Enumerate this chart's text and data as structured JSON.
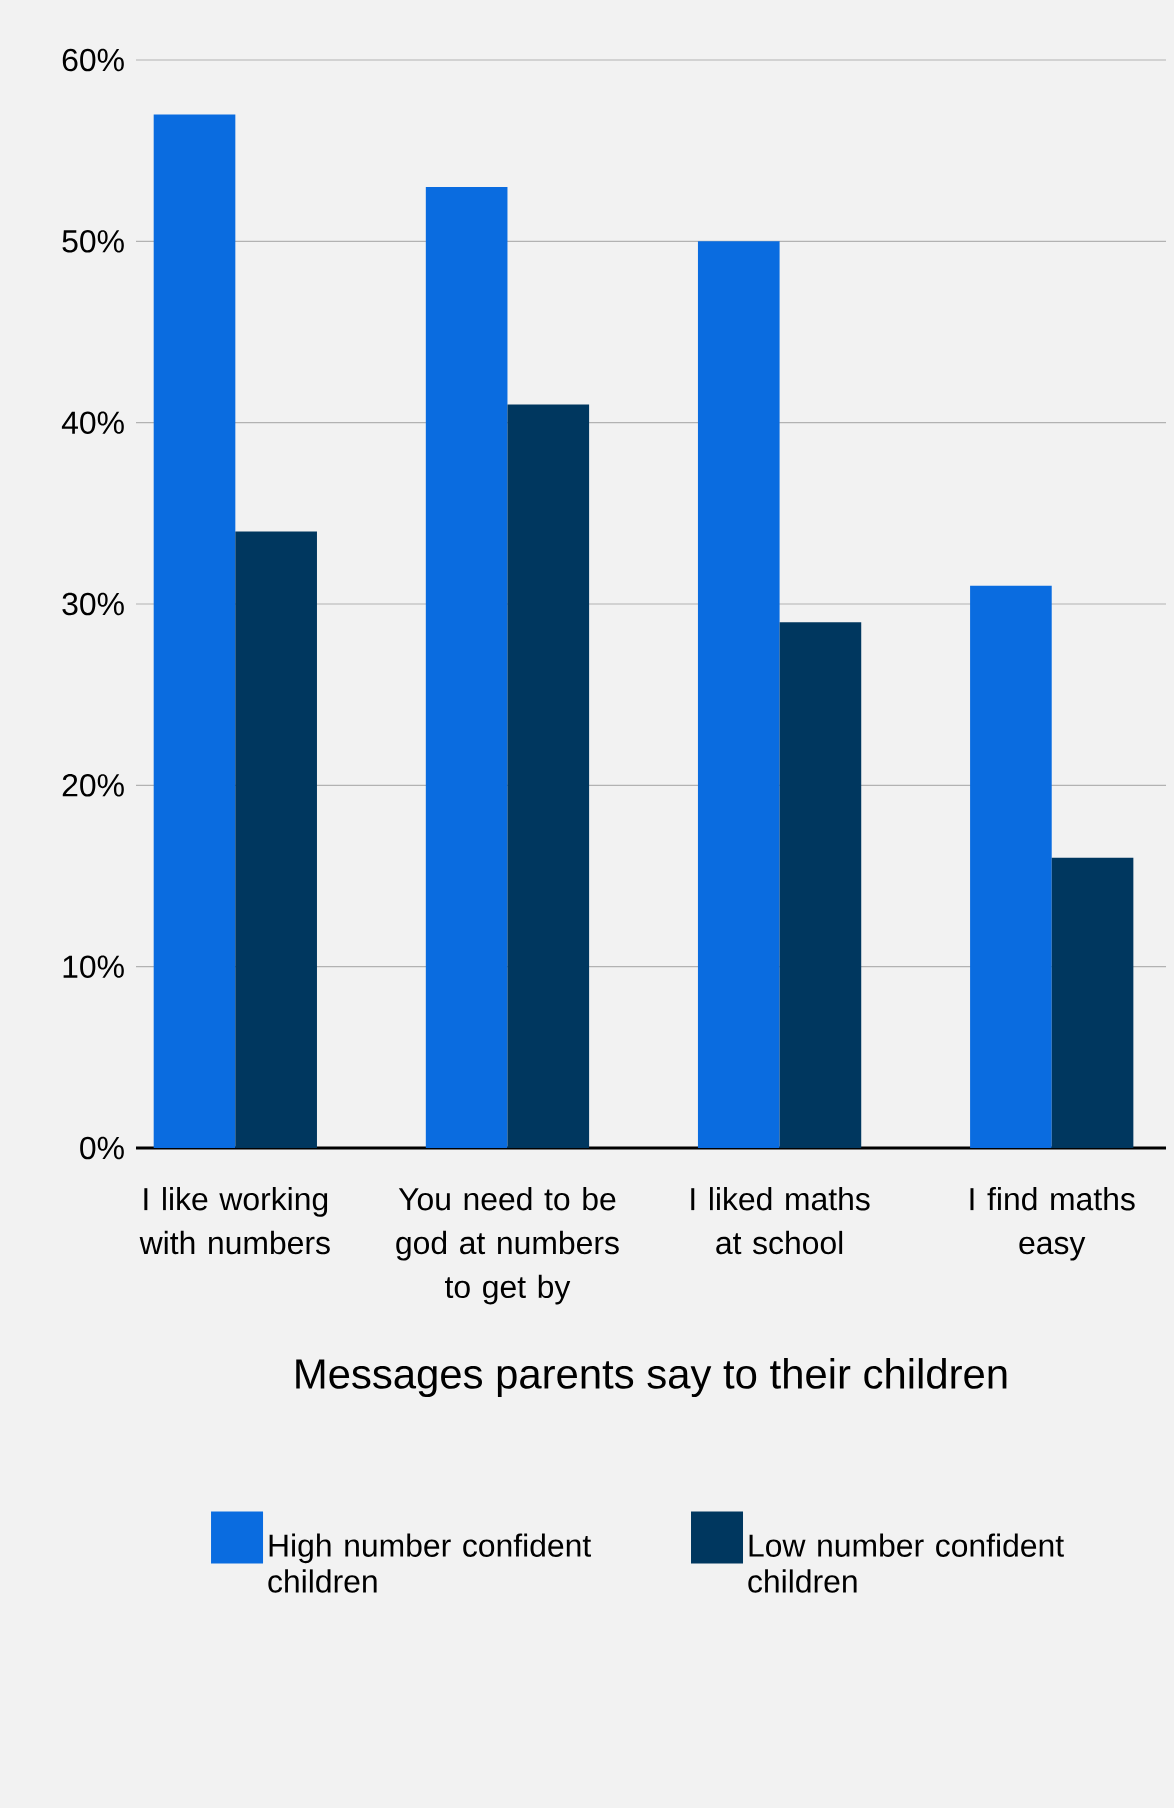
{
  "chart_data": {
    "type": "bar",
    "xlabel": "Messages parents say to their children",
    "categories": [
      "I like working with numbers",
      "You need to be god at numbers to get by",
      "I liked maths at school",
      "I find maths easy"
    ],
    "series": [
      {
        "name": "High number confident children",
        "color": "#0a6ce0",
        "values": [
          57,
          53,
          50,
          31
        ]
      },
      {
        "name": "Low number confident children",
        "color": "#00375f",
        "values": [
          34,
          41,
          29,
          16
        ]
      }
    ],
    "ylim": [
      0,
      60
    ],
    "yticks": [
      {
        "value": 0,
        "label": "0%"
      },
      {
        "value": 10,
        "label": "10%"
      },
      {
        "value": 20,
        "label": "20%"
      },
      {
        "value": 30,
        "label": "30%"
      },
      {
        "value": 40,
        "label": "40%"
      },
      {
        "value": 50,
        "label": "50%"
      },
      {
        "value": 60,
        "label": "60%"
      }
    ],
    "grid": "y",
    "legend": "bottom"
  }
}
